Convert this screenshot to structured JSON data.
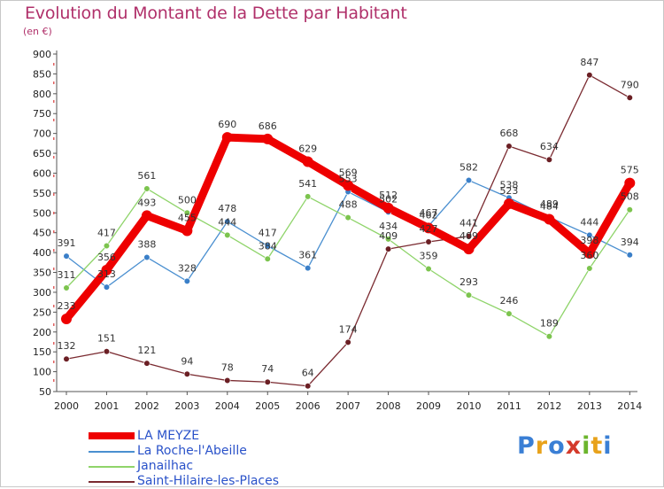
{
  "title": "Evolution du Montant de la Dette par Habitant",
  "unit_label": "(en €)",
  "logo": {
    "letters": [
      "P",
      "r",
      "o",
      "x",
      "i",
      "t",
      "i"
    ],
    "colors": [
      "#3a7fd5",
      "#e8a21b",
      "#3a7fd5",
      "#d43a2b",
      "#6cb52d",
      "#e8a21b",
      "#3a7fd5"
    ]
  },
  "chart_data": {
    "type": "line",
    "x": [
      "2000",
      "2001",
      "2002",
      "2003",
      "2004",
      "2005",
      "2006",
      "2007",
      "2008",
      "2009",
      "2010",
      "2011",
      "2012",
      "2013",
      "2014"
    ],
    "ylim": [
      50,
      900
    ],
    "yticks": [
      50,
      100,
      150,
      200,
      250,
      300,
      350,
      400,
      450,
      500,
      550,
      600,
      650,
      700,
      750,
      800,
      850,
      900
    ],
    "grid": false,
    "legend_position": "bottom-left",
    "series": [
      {
        "name": "La Roche-l'Abeille",
        "color": "#4a8fd0",
        "dot": "#3a7fc8",
        "values": [
          391,
          313,
          388,
          328,
          478,
          417,
          361,
          553,
          502,
          467,
          582,
          538,
          489,
          444,
          394
        ]
      },
      {
        "name": "Janailhac",
        "color": "#8fd46a",
        "dot": "#7cc44e",
        "values": [
          311,
          417,
          561,
          500,
          444,
          384,
          541,
          488,
          434,
          359,
          293,
          246,
          189,
          360,
          508
        ]
      },
      {
        "name": "Saint-Hilaire-les-Places",
        "color": "#7a2a30",
        "dot": "#6b1f24",
        "values": [
          132,
          151,
          121,
          94,
          78,
          74,
          64,
          174,
          409,
          427,
          441,
          668,
          634,
          847,
          790
        ]
      },
      {
        "name": "LA MEYZE",
        "color": "#ee0000",
        "dot": "#ee0000",
        "values": [
          233,
          356,
          493,
          455,
          690,
          686,
          629,
          569,
          512,
          462,
          409,
          523,
          484,
          398,
          575
        ]
      }
    ]
  }
}
